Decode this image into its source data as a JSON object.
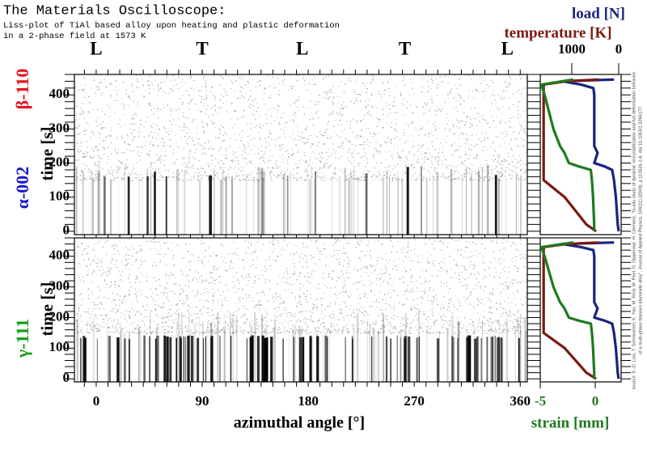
{
  "header": {
    "title": "The Materials Oscilloscope:",
    "subtitle": [
      "Liss-plot of TiAl based alloy upon heating and plastic deformation",
      "in a 2-phase field at 1573 K"
    ]
  },
  "source": [
    "source: K.-D. Liss, T. Schmoelzer, K. Yan, M. Reid, M. Peel, R. Dippenaar, H. Clemens, \"In-situ study of dynamic recrystallization and hot deformation behavior",
    "of a multi-phase titanium aluminide alloy\", Journal of Applied Physics, 106(11) (2009), p 113526-1-6. doi:10.1063/1.3266177"
  ],
  "chart_data": [
    {
      "type": "liss",
      "x_label": "azimuthal angle [°]",
      "y_label": "time [s]",
      "xlim": [
        -18.5,
        366
      ],
      "xticks": [
        0,
        90,
        180,
        270,
        360
      ],
      "xminorticks": [
        -10,
        0,
        10,
        20,
        30,
        40,
        50,
        60,
        70,
        80,
        90,
        100,
        110,
        120,
        130,
        140,
        150,
        160,
        170,
        180,
        190,
        200,
        210,
        220,
        230,
        240,
        250,
        260,
        270,
        280,
        290,
        300,
        310,
        320,
        330,
        340,
        350,
        360
      ],
      "ylim": [
        -10,
        460
      ],
      "yticks": [
        0,
        100,
        200,
        300,
        400
      ],
      "yminorticks": [
        0,
        20,
        40,
        60,
        80,
        100,
        120,
        140,
        160,
        180,
        200,
        220,
        240,
        260,
        280,
        300,
        320,
        340,
        360,
        380,
        400,
        420,
        440,
        460
      ],
      "top_ticks": [
        {
          "value": 0,
          "label": "L"
        },
        {
          "value": 90,
          "label": "T"
        },
        {
          "value": 175,
          "label": "L"
        },
        {
          "value": 262,
          "label": "T"
        },
        {
          "value": 349,
          "label": "L"
        }
      ],
      "panels": [
        {
          "reflections": [
            {
              "name": "β-110",
              "color": "#e8141c"
            }
          ]
        },
        {
          "reflections": [
            {
              "name": "α-002",
              "color": "#1818c8"
            },
            {
              "name": "γ-111",
              "color": "#12a012"
            }
          ]
        }
      ]
    },
    {
      "type": "line",
      "time": [
        0,
        20,
        100,
        150,
        180,
        190,
        200,
        230,
        250,
        300,
        400,
        420,
        430,
        440,
        445
      ],
      "series": [
        {
          "name": "load [N]",
          "color": "#1a237e",
          "axis": "top",
          "values": [
            0,
            20,
            60,
            100,
            140,
            300,
            520,
            450,
            520,
            520,
            520,
            540,
            800,
            1200,
            100
          ]
        },
        {
          "name": "temperature [K]",
          "color": "#7a1a10",
          "axis": "top",
          "values": [
            480,
            690,
            1150,
            1600,
            1600,
            1600,
            1600,
            1600,
            1600,
            1600,
            1600,
            1600,
            1600,
            1120,
            430
          ]
        },
        {
          "name": "strain [mm]",
          "color": "#1e7a1e",
          "axis": "bottom",
          "values": [
            -0.1,
            -0.1,
            -0.2,
            -0.3,
            -0.4,
            -1.5,
            -2.4,
            -2.8,
            -3.2,
            -3.8,
            -4.6,
            -4.8,
            -4.9,
            -3,
            -2
          ]
        }
      ],
      "toplim": [
        1672,
        -52
      ],
      "topticks": [
        1000,
        0
      ],
      "bottomlim": [
        -5,
        2.35
      ],
      "bottomticks": [
        -5,
        0
      ]
    }
  ]
}
